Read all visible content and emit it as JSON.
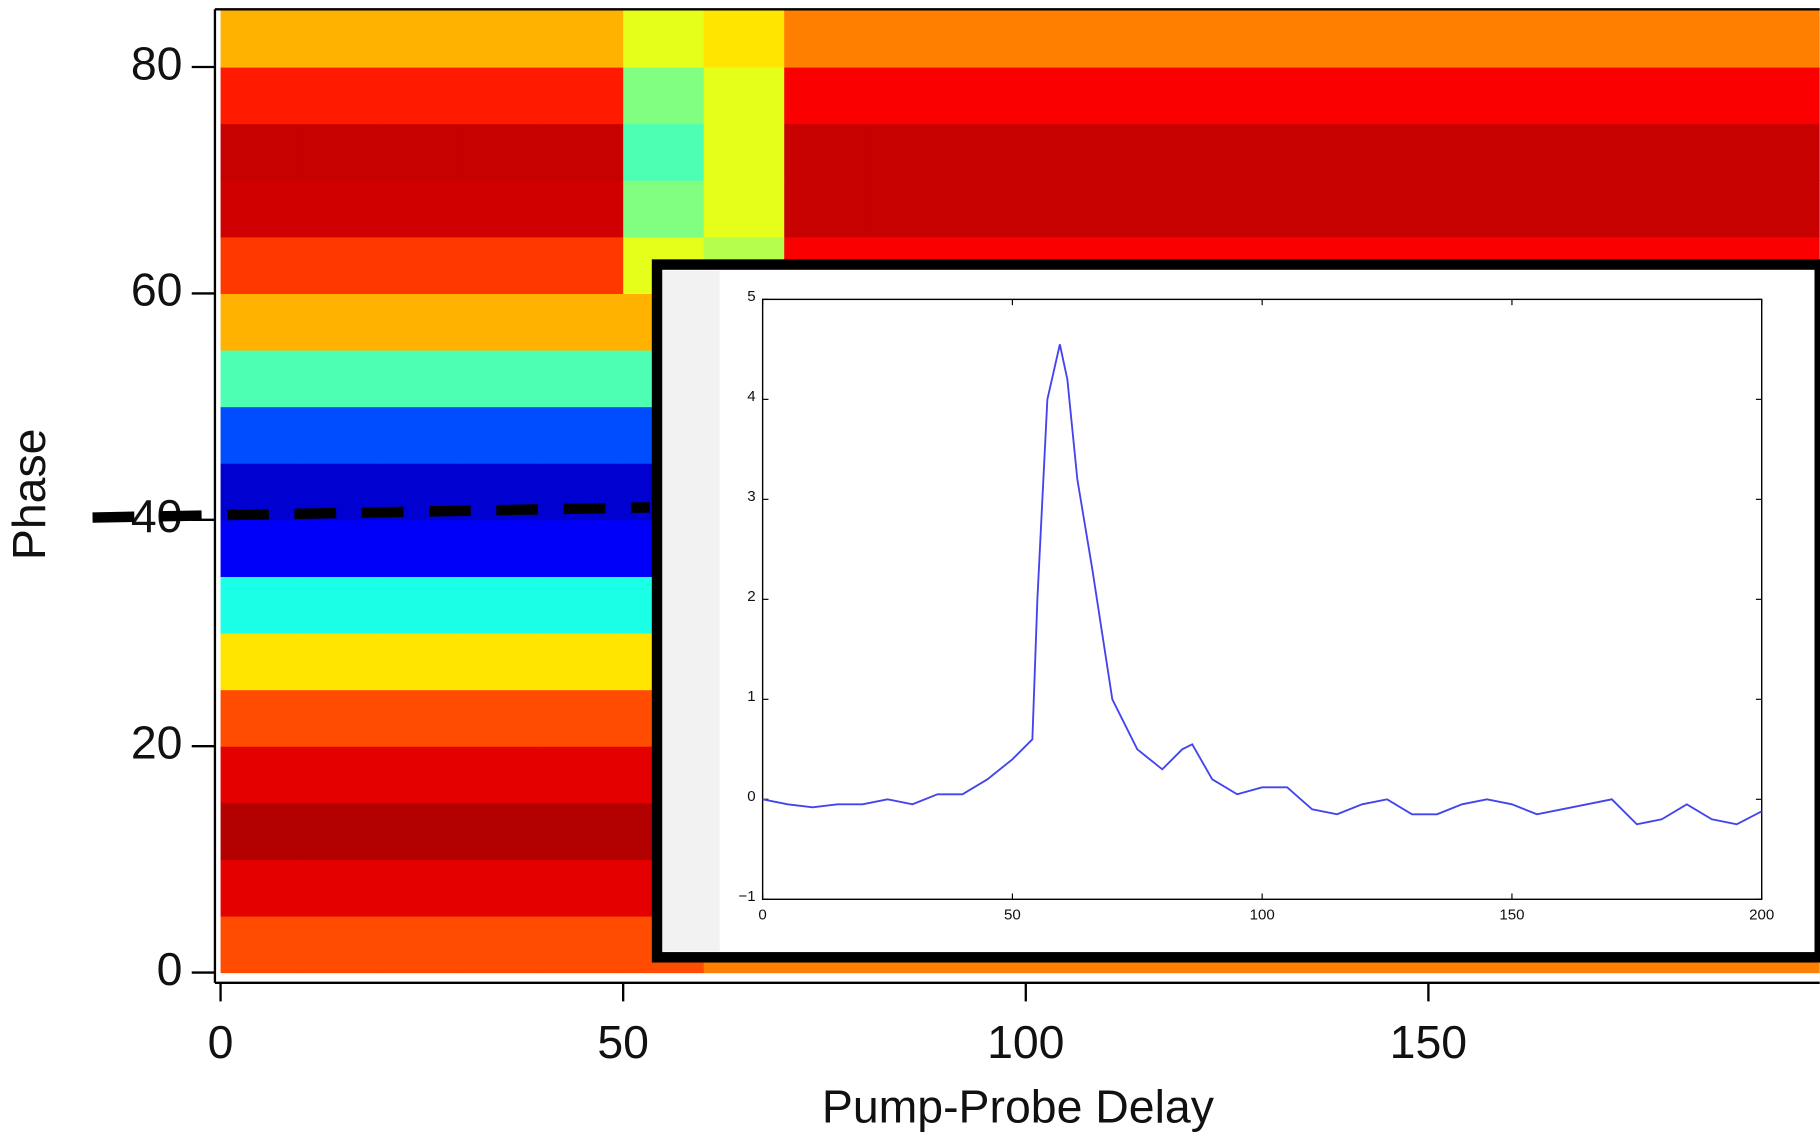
{
  "chart_data": [
    {
      "type": "heatmap",
      "xlabel": "Pump-Probe Delay",
      "ylabel": "Phase",
      "colormap": "jet",
      "clim": [
        0,
        1
      ],
      "xlim": [
        -0.7,
        198.6
      ],
      "ylim": [
        -0.7,
        85.1
      ],
      "xticks": [
        0,
        50,
        100,
        150
      ],
      "yticks": [
        0,
        20,
        40,
        60,
        80
      ],
      "x_edges": [
        0,
        10,
        20,
        30,
        40,
        50,
        60,
        70,
        80,
        90,
        100,
        110,
        120,
        130,
        140,
        150,
        160,
        170,
        180,
        190,
        200
      ],
      "y_edges": [
        0,
        5,
        10,
        15,
        20,
        25,
        30,
        35,
        40,
        45,
        50,
        55,
        60,
        65,
        70,
        75,
        80,
        85
      ],
      "values": [
        [
          0.8,
          0.8,
          0.8,
          0.8,
          0.8,
          0.8,
          0.75,
          0.75,
          0.75,
          0.75,
          0.75,
          0.75,
          0.75,
          0.75,
          0.75,
          0.75,
          0.75,
          0.75,
          0.75,
          0.75
        ],
        [
          0.9,
          0.9,
          0.9,
          0.9,
          0.9,
          0.9,
          0.82,
          0.85,
          0.85,
          0.85,
          0.85,
          0.85,
          0.85,
          0.85,
          0.85,
          0.85,
          0.85,
          0.85,
          0.85,
          0.85
        ],
        [
          0.95,
          0.95,
          0.95,
          0.95,
          0.95,
          0.95,
          0.82,
          0.85,
          0.85,
          0.85,
          0.85,
          0.85,
          0.85,
          0.85,
          0.85,
          0.85,
          0.85,
          0.85,
          0.85,
          0.85
        ],
        [
          0.9,
          0.9,
          0.9,
          0.9,
          0.9,
          0.9,
          0.82,
          0.85,
          0.85,
          0.85,
          0.85,
          0.85,
          0.85,
          0.85,
          0.85,
          0.85,
          0.85,
          0.85,
          0.85,
          0.85
        ],
        [
          0.8,
          0.8,
          0.8,
          0.8,
          0.8,
          0.8,
          0.82,
          0.85,
          0.85,
          0.85,
          0.85,
          0.85,
          0.85,
          0.85,
          0.85,
          0.85,
          0.85,
          0.85,
          0.85,
          0.85
        ],
        [
          0.65,
          0.65,
          0.65,
          0.65,
          0.65,
          0.65,
          0.82,
          0.85,
          0.85,
          0.85,
          0.85,
          0.85,
          0.85,
          0.85,
          0.85,
          0.85,
          0.85,
          0.85,
          0.85,
          0.85
        ],
        [
          0.4,
          0.4,
          0.4,
          0.4,
          0.4,
          0.4,
          0.82,
          0.85,
          0.85,
          0.85,
          0.85,
          0.85,
          0.85,
          0.85,
          0.85,
          0.85,
          0.85,
          0.85,
          0.85,
          0.85
        ],
        [
          0.12,
          0.12,
          0.12,
          0.12,
          0.12,
          0.12,
          0.82,
          0.85,
          0.85,
          0.85,
          0.85,
          0.85,
          0.85,
          0.85,
          0.85,
          0.85,
          0.85,
          0.85,
          0.85,
          0.85
        ],
        [
          0.08,
          0.08,
          0.08,
          0.08,
          0.08,
          0.08,
          0.82,
          0.85,
          0.85,
          0.85,
          0.85,
          0.85,
          0.85,
          0.85,
          0.85,
          0.85,
          0.85,
          0.85,
          0.85,
          0.85
        ],
        [
          0.2,
          0.2,
          0.2,
          0.2,
          0.2,
          0.2,
          0.82,
          0.85,
          0.85,
          0.85,
          0.85,
          0.85,
          0.85,
          0.85,
          0.85,
          0.85,
          0.85,
          0.85,
          0.85,
          0.85
        ],
        [
          0.45,
          0.45,
          0.45,
          0.45,
          0.45,
          0.45,
          0.82,
          0.85,
          0.85,
          0.85,
          0.85,
          0.85,
          0.85,
          0.85,
          0.85,
          0.85,
          0.85,
          0.85,
          0.85,
          0.85
        ],
        [
          0.7,
          0.7,
          0.7,
          0.7,
          0.7,
          0.7,
          0.82,
          0.85,
          0.85,
          0.85,
          0.85,
          0.85,
          0.85,
          0.85,
          0.85,
          0.85,
          0.85,
          0.85,
          0.85,
          0.85
        ],
        [
          0.82,
          0.82,
          0.82,
          0.82,
          0.82,
          0.6,
          0.55,
          0.88,
          0.88,
          0.88,
          0.88,
          0.88,
          0.88,
          0.88,
          0.88,
          0.88,
          0.88,
          0.88,
          0.88,
          0.88
        ],
        [
          0.92,
          0.92,
          0.92,
          0.92,
          0.92,
          0.5,
          0.6,
          0.93,
          0.93,
          0.93,
          0.93,
          0.93,
          0.93,
          0.93,
          0.93,
          0.93,
          0.93,
          0.93,
          0.93,
          0.93
        ],
        [
          0.93,
          0.93,
          0.93,
          0.93,
          0.93,
          0.45,
          0.6,
          0.93,
          0.93,
          0.93,
          0.93,
          0.93,
          0.93,
          0.93,
          0.93,
          0.93,
          0.93,
          0.93,
          0.93,
          0.93
        ],
        [
          0.85,
          0.85,
          0.85,
          0.85,
          0.85,
          0.5,
          0.6,
          0.88,
          0.88,
          0.88,
          0.88,
          0.88,
          0.88,
          0.88,
          0.88,
          0.88,
          0.88,
          0.88,
          0.88,
          0.88
        ],
        [
          0.7,
          0.7,
          0.7,
          0.7,
          0.7,
          0.6,
          0.65,
          0.75,
          0.75,
          0.75,
          0.75,
          0.75,
          0.75,
          0.75,
          0.75,
          0.75,
          0.75,
          0.75,
          0.75,
          0.75
        ]
      ],
      "dashed_line": {
        "x": [
          -15.9,
          53.3
        ],
        "y": [
          40.2,
          41.1
        ]
      }
    },
    {
      "type": "line",
      "color": "#4444ee",
      "xlim": [
        0,
        200
      ],
      "ylim": [
        -1,
        5
      ],
      "xticks": [
        0,
        50,
        100,
        150,
        200
      ],
      "yticks": [
        {
          "value": -1,
          "label": "−1"
        },
        0,
        1,
        2,
        3,
        4,
        5
      ],
      "x": [
        0,
        5,
        10,
        15,
        20,
        25,
        30,
        35,
        40,
        45,
        50,
        54,
        55,
        57,
        59.5,
        61,
        63,
        66,
        70,
        75,
        80,
        84,
        86,
        90,
        95,
        100,
        105,
        110,
        115,
        120,
        125,
        130,
        135,
        140,
        145,
        150,
        155,
        160,
        165,
        170,
        175,
        180,
        185,
        190,
        195,
        200
      ],
      "values": [
        0,
        -0.05,
        -0.08,
        -0.05,
        -0.05,
        0,
        -0.05,
        0.05,
        0.05,
        0.2,
        0.4,
        0.6,
        2.0,
        4.0,
        4.55,
        4.2,
        3.2,
        2.3,
        1.0,
        0.5,
        0.3,
        0.5,
        0.55,
        0.2,
        0.05,
        0.12,
        0.12,
        -0.1,
        -0.15,
        -0.05,
        0,
        -0.15,
        -0.15,
        -0.05,
        0,
        -0.05,
        -0.15,
        -0.1,
        -0.05,
        0,
        -0.25,
        -0.2,
        -0.05,
        -0.2,
        -0.25,
        -0.12
      ]
    }
  ]
}
